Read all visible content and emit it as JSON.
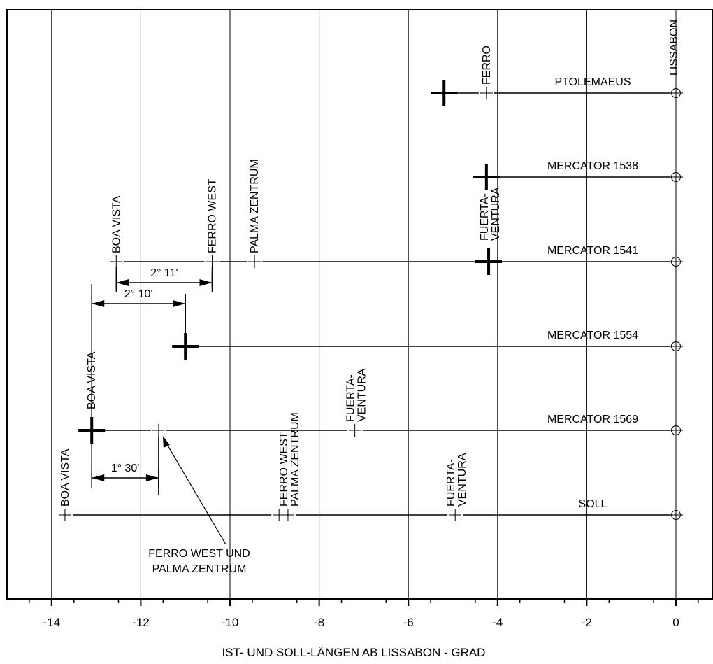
{
  "chart_data": {
    "type": "diagram",
    "xlabel": "IST- UND SOLL-LÄNGEN AB LISSABON - GRAD",
    "xlim": [
      -15.0,
      0.7
    ],
    "x_ticks": [
      {
        "value": -14,
        "label": "-14"
      },
      {
        "value": -12,
        "label": "-12"
      },
      {
        "value": -10,
        "label": "-10"
      },
      {
        "value": -8,
        "label": "-8"
      },
      {
        "value": -6,
        "label": "-6"
      },
      {
        "value": -4,
        "label": "-4"
      },
      {
        "value": -2,
        "label": "-2"
      },
      {
        "value": 0,
        "label": "0"
      }
    ],
    "grid": "vertical",
    "top_label": "LISSABON",
    "series": [
      {
        "name": "PTOLEMAEUS",
        "marks": [
          {
            "type": "big",
            "x": -5.2
          },
          {
            "type": "small",
            "x": -4.25,
            "label": "FERRO"
          },
          {
            "type": "circle",
            "x": 0
          }
        ]
      },
      {
        "name": "MERCATOR 1538",
        "marks": [
          {
            "type": "big",
            "x": -4.25
          },
          {
            "type": "circle",
            "x": 0
          }
        ]
      },
      {
        "name": "MERCATOR 1541",
        "marks": [
          {
            "type": "small",
            "x": -12.55,
            "label": "BOA VISTA"
          },
          {
            "type": "small",
            "x": -10.4,
            "label": "FERRO WEST"
          },
          {
            "type": "small",
            "x": -9.45,
            "label": "PALMA ZENTRUM"
          },
          {
            "type": "big",
            "x": -4.2,
            "label": "FUERTA-\nVENTURA"
          },
          {
            "type": "circle",
            "x": 0
          }
        ]
      },
      {
        "name": "MERCATOR 1554",
        "marks": [
          {
            "type": "big",
            "x": -11.0
          },
          {
            "type": "circle",
            "x": 0
          }
        ]
      },
      {
        "name": "MERCATOR 1569",
        "marks": [
          {
            "type": "big",
            "x": -13.1,
            "label": "BOA VISTA"
          },
          {
            "type": "small",
            "x": -11.6
          },
          {
            "type": "small",
            "x": -7.2,
            "label": "FUERTA-\nVENTURA"
          },
          {
            "type": "circle",
            "x": 0
          }
        ]
      },
      {
        "name": "SOLL",
        "marks": [
          {
            "type": "small",
            "x": -13.7,
            "label": "BOA VISTA"
          },
          {
            "type": "small",
            "x": -8.9
          },
          {
            "type": "small",
            "x": -8.7,
            "label": "FERRO WEST\nPALMA ZENTRUM"
          },
          {
            "type": "small",
            "x": -4.95,
            "label": "FUERTA-\nVENTURA"
          },
          {
            "type": "circle",
            "x": 0
          }
        ]
      }
    ],
    "dimensions": [
      {
        "label": "2° 11'",
        "from": -12.55,
        "to": -10.4
      },
      {
        "label": "2° 10'",
        "from": -13.1,
        "to": -11.0
      },
      {
        "label": "1° 30'",
        "from": -13.1,
        "to": -11.6
      }
    ],
    "annotation": {
      "text": [
        "FERRO WEST UND",
        "PALMA ZENTRUM"
      ],
      "points_to_x": -11.6
    }
  }
}
